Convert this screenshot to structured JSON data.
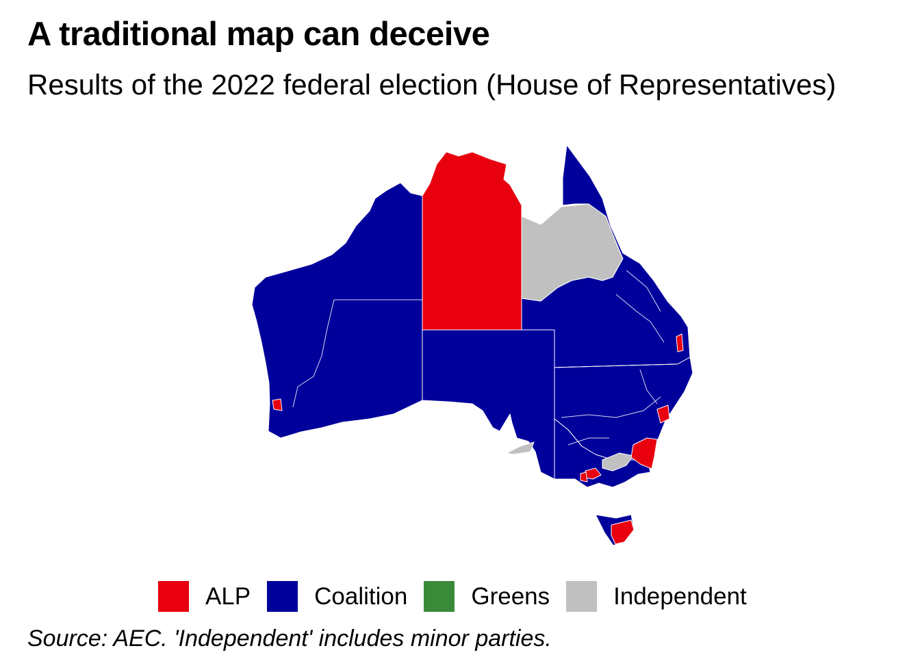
{
  "title": "A traditional map can deceive",
  "subtitle": "Results of the 2022 federal election (House of Representatives)",
  "caption": "Source: AEC. 'Independent' includes minor parties.",
  "colors": {
    "ALP": "#e8000f",
    "Coalition": "#00009b",
    "Greens": "#3a8a3a",
    "Independent": "#c0c0c0",
    "boundary": "#ffffff"
  },
  "legend": [
    {
      "label": "ALP",
      "party": "ALP"
    },
    {
      "label": "Coalition",
      "party": "Coalition"
    },
    {
      "label": "Greens",
      "party": "Greens"
    },
    {
      "label": "Independent",
      "party": "Independent"
    }
  ],
  "map": {
    "region": "Australia",
    "electorate_groups": [
      {
        "name": "northern-territory-seat",
        "party": "ALP"
      },
      {
        "name": "western-australia-seats",
        "party": "Coalition"
      },
      {
        "name": "south-australia-seats",
        "party": "Coalition"
      },
      {
        "name": "western-queensland-seat",
        "party": "Independent"
      },
      {
        "name": "queensland-seats",
        "party": "Coalition"
      },
      {
        "name": "new-south-wales-seats",
        "party": "Coalition"
      },
      {
        "name": "victoria-seats",
        "party": "Coalition"
      },
      {
        "name": "tasmania-seats",
        "party": "Coalition"
      },
      {
        "name": "perth-seat",
        "party": "ALP"
      },
      {
        "name": "brisbane-seat",
        "party": "ALP"
      },
      {
        "name": "hunter-seat",
        "party": "ALP"
      },
      {
        "name": "south-coast-seat",
        "party": "ALP"
      },
      {
        "name": "melbourne-seat",
        "party": "ALP"
      },
      {
        "name": "geelong-seat",
        "party": "ALP"
      },
      {
        "name": "tasmania-south-seat",
        "party": "ALP"
      },
      {
        "name": "kangaroo-island-seat",
        "party": "Independent"
      },
      {
        "name": "gippsland-seat",
        "party": "Independent"
      }
    ]
  }
}
